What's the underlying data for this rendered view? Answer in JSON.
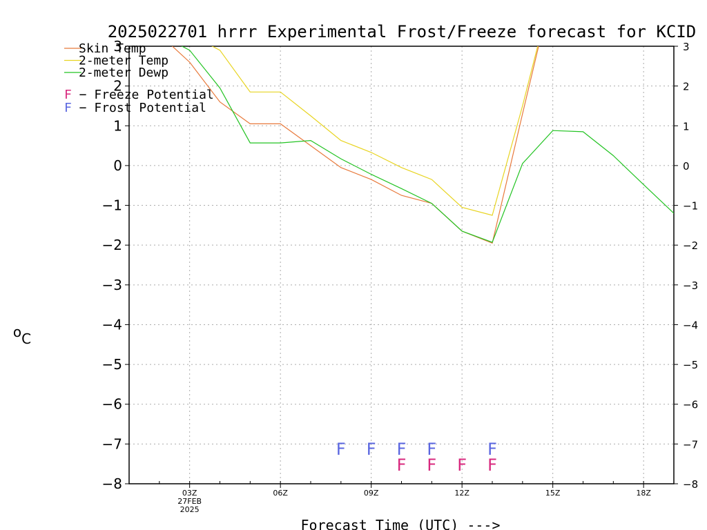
{
  "chart_data": {
    "type": "line",
    "title": "2025022701 hrrr Experimental Frost/Freeze forecast for KCID",
    "xlabel": "Forecast Time (UTC) --->",
    "ylabel_unit": "C",
    "ylabel_degree": "o",
    "ylim": [
      -8,
      3
    ],
    "xlim": [
      1,
      19
    ],
    "yticks": [
      3,
      2,
      1,
      0,
      -1,
      -2,
      -3,
      -4,
      -5,
      -6,
      -7,
      -8
    ],
    "ytick_labels": [
      "3",
      "2",
      "1",
      "0",
      "−1",
      "−2",
      "−3",
      "−4",
      "−5",
      "−6",
      "−7",
      "−8"
    ],
    "xticks": [
      {
        "x": 3,
        "label": "03Z",
        "date": "27FEB",
        "year": "2025"
      },
      {
        "x": 6,
        "label": "06Z"
      },
      {
        "x": 9,
        "label": "09Z"
      },
      {
        "x": 12,
        "label": "12Z"
      },
      {
        "x": 15,
        "label": "15Z"
      },
      {
        "x": 18,
        "label": "18Z"
      }
    ],
    "grid": true,
    "legend_position": "top-left",
    "series": [
      {
        "name": "Skin Temp",
        "color": "#e8793b",
        "x": [
          2,
          3,
          4,
          5,
          6,
          7,
          8,
          9,
          10,
          11,
          12,
          13,
          14,
          15
        ],
        "y": [
          3.3,
          2.6,
          1.6,
          1.05,
          1.05,
          0.5,
          -0.05,
          -0.35,
          -0.75,
          -0.95,
          -1.65,
          -1.95,
          1.3,
          4.5
        ]
      },
      {
        "name": "2-meter Temp",
        "color": "#e8d420",
        "x": [
          2,
          3,
          4,
          5,
          6,
          7,
          8,
          9,
          10,
          11,
          12,
          13,
          14,
          15
        ],
        "y": [
          3.6,
          3.3,
          2.9,
          1.85,
          1.85,
          1.25,
          0.63,
          0.33,
          -0.05,
          -0.35,
          -1.05,
          -1.25,
          1.5,
          4.5
        ]
      },
      {
        "name": "2-meter Dewp",
        "color": "#22c322",
        "x": [
          2,
          3,
          4,
          5,
          6,
          7,
          8,
          9,
          10,
          11,
          12,
          13,
          14,
          15,
          16,
          17,
          18,
          19
        ],
        "y": [
          3.3,
          2.9,
          1.95,
          0.57,
          0.57,
          0.63,
          0.17,
          -0.22,
          -0.58,
          -0.95,
          -1.65,
          -1.93,
          0.05,
          0.88,
          0.85,
          0.25,
          -0.48,
          -1.2
        ]
      }
    ],
    "frost_potential": {
      "label": "F − Frost Potential",
      "color": "#5a66e0",
      "letter": "F",
      "x": [
        8,
        9,
        10,
        11,
        13
      ]
    },
    "freeze_potential": {
      "label": "F − Freeze Potential",
      "color": "#d8287e",
      "letter": "F",
      "x": [
        10,
        11,
        12,
        13
      ]
    }
  }
}
